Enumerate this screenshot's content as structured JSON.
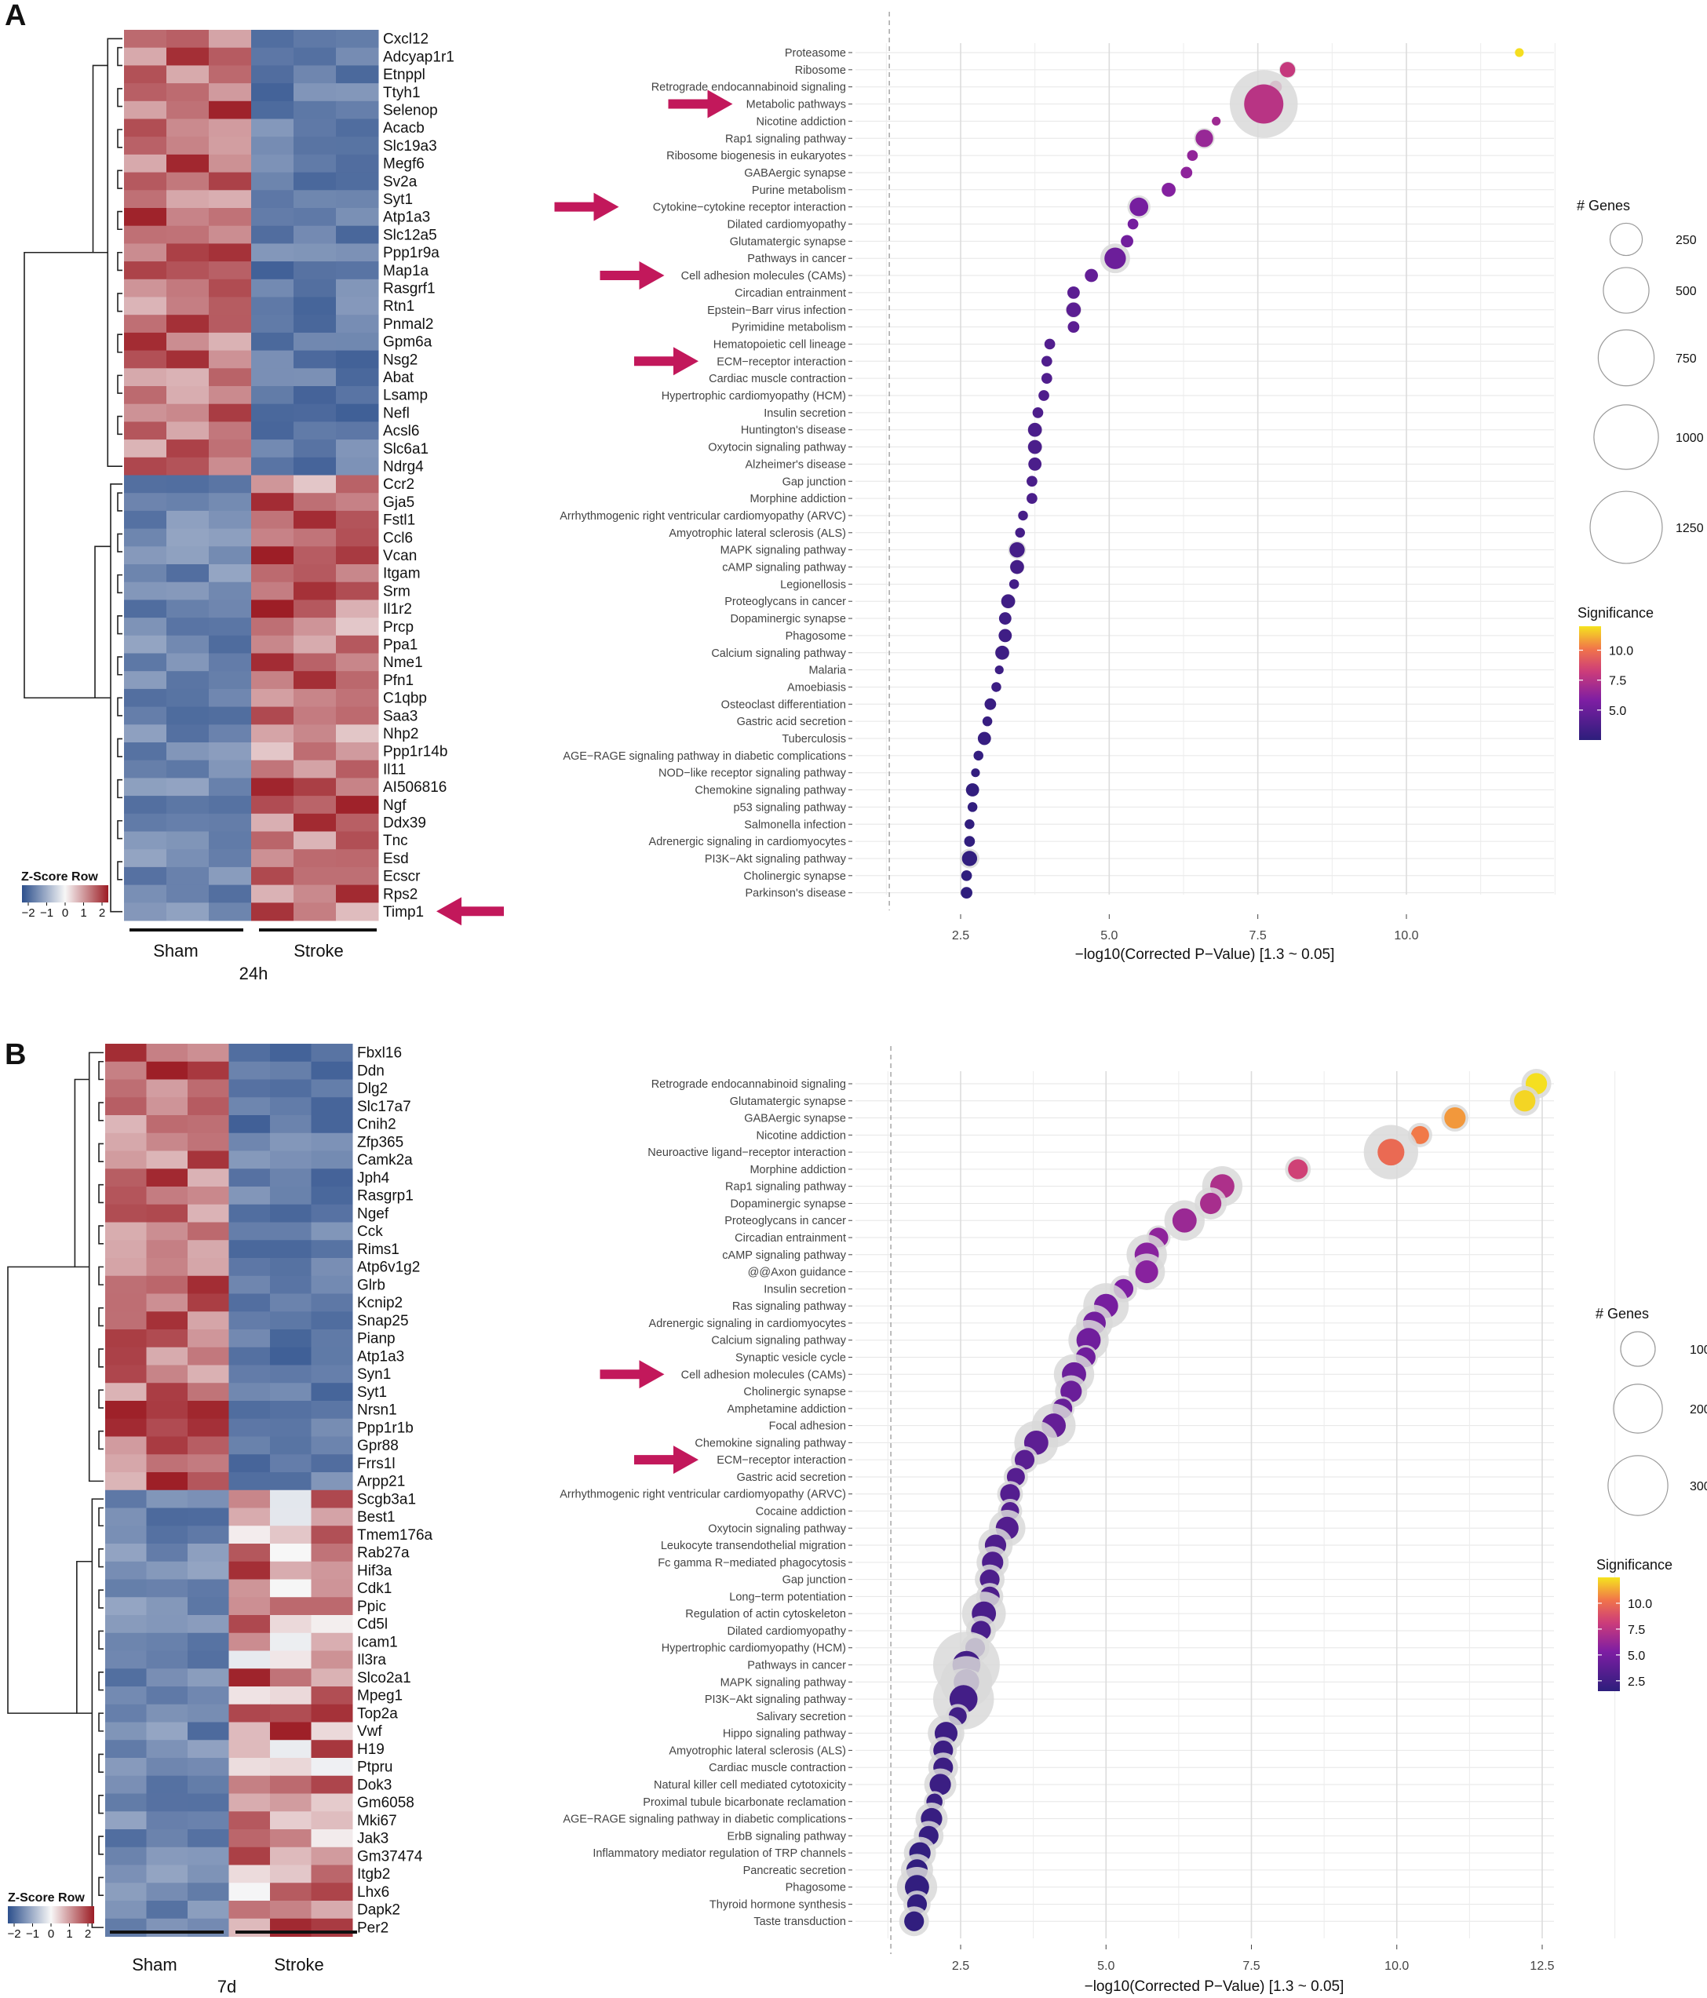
{
  "panels": [
    {
      "letter": "A",
      "timepoint": "24h",
      "group_labels": [
        "Sham",
        "Stroke"
      ],
      "zscore_title": "Z-Score Row",
      "zscore_ticks": [
        "−2",
        "−1",
        "0",
        "1",
        "2"
      ],
      "genes": [
        "Cxcl12",
        "Adcyap1r1",
        "Etnppl",
        "Ttyh1",
        "Selenop",
        "Acacb",
        "Slc19a3",
        "Megf6",
        "Sv2a",
        "Syt1",
        "Atp1a3",
        "Slc12a5",
        "Ppp1r9a",
        "Map1a",
        "Rasgrf1",
        "Rtn1",
        "Pnmal2",
        "Gpm6a",
        "Nsg2",
        "Abat",
        "Lsamp",
        "Nefl",
        "Acsl6",
        "Slc6a1",
        "Ndrg4",
        "Ccr2",
        "Gja5",
        "Fstl1",
        "Ccl6",
        "Vcan",
        "Itgam",
        "Srm",
        "Il1r2",
        "Prcp",
        "Ppa1",
        "Nme1",
        "Pfn1",
        "C1qbp",
        "Saa3",
        "Nhp2",
        "Ppp1r14b",
        "Il11",
        "AI506816",
        "Ngf",
        "Ddx39",
        "Tnc",
        "Esd",
        "Ecscr",
        "Rps2",
        "Timp1"
      ],
      "n_down": 25,
      "arrow_gene": "Timp1"
    },
    {
      "letter": "B",
      "timepoint": "7d",
      "group_labels": [
        "Sham",
        "Stroke"
      ],
      "zscore_title": "Z-Score Row",
      "zscore_ticks": [
        "−2",
        "−1",
        "0",
        "1",
        "2"
      ],
      "genes": [
        "Fbxl16",
        "Ddn",
        "Dlg2",
        "Slc17a7",
        "Cnih2",
        "Zfp365",
        "Camk2a",
        "Jph4",
        "Rasgrp1",
        "Ngef",
        "Cck",
        "Rims1",
        "Atp6v1g2",
        "Glrb",
        "Kcnip2",
        "Snap25",
        "Pianp",
        "Atp1a3",
        "Syn1",
        "Syt1",
        "Nrsn1",
        "Ppp1r1b",
        "Gpr88",
        "Frrs1l",
        "Arpp21",
        "Scgb3a1",
        "Best1",
        "Tmem176a",
        "Rab27a",
        "Hif3a",
        "Cdk1",
        "Ppic",
        "Cd5l",
        "Icam1",
        "Il3ra",
        "Slco2a1",
        "Mpeg1",
        "Top2a",
        "Vwf",
        "H19",
        "Ptpru",
        "Dok3",
        "Gm6058",
        "Mki67",
        "Jak3",
        "Gm37474",
        "Itgb2",
        "Lhx6",
        "Dapk2",
        "Per2"
      ],
      "n_down": 25,
      "arrow_gene": ""
    }
  ],
  "chart_data": [
    {
      "type": "scatter",
      "panel": "A",
      "xlabel": "−log10(Corrected P−Value) [1.3 ~ 0.05]",
      "x_ticks": [
        2.5,
        5.0,
        7.5,
        10.0
      ],
      "x_tick_labels": [
        "2.5",
        "5.0",
        "7.5",
        "10.0"
      ],
      "xlim": [
        0,
        12.5
      ],
      "threshold": 1.3,
      "size_legend_title": "# Genes",
      "size_legend": [
        250,
        500,
        750,
        1000,
        1250
      ],
      "color_legend_title": "Significance",
      "color_legend_ticks": [
        10.0,
        7.5,
        5.0
      ],
      "color_legend_tick_labels": [
        "10.0",
        "7.5",
        "5.0"
      ],
      "color_range": [
        2.5,
        12
      ],
      "arrows_at": [
        "Metabolic pathways",
        "Cytokine−cytokine receptor interaction",
        "Cell adhesion molecules (CAMs)",
        "ECM−receptor interaction"
      ],
      "pathways": [
        {
          "name": "Proteasome",
          "x": 11.9,
          "total": 0,
          "hits": 20
        },
        {
          "name": "Ribosome",
          "x": 8.0,
          "total": 80,
          "hits": 60
        },
        {
          "name": "Retrograde endocannabinoid signaling",
          "x": 7.8,
          "total": 0,
          "hits": 40
        },
        {
          "name": "Metabolic pathways",
          "x": 7.6,
          "total": 1300,
          "hits": 400
        },
        {
          "name": "Nicotine addiction",
          "x": 6.8,
          "total": 0,
          "hits": 20
        },
        {
          "name": "Rap1 signaling pathway",
          "x": 6.6,
          "total": 120,
          "hits": 80
        },
        {
          "name": "Ribosome biogenesis in eukaryotes",
          "x": 6.4,
          "total": 0,
          "hits": 30
        },
        {
          "name": "GABAergic synapse",
          "x": 6.3,
          "total": 0,
          "hits": 35
        },
        {
          "name": "Purine metabolism",
          "x": 6.0,
          "total": 60,
          "hits": 50
        },
        {
          "name": "Cytokine−cytokine receptor interaction",
          "x": 5.5,
          "total": 150,
          "hits": 90
        },
        {
          "name": "Dilated cardiomyopathy",
          "x": 5.4,
          "total": 0,
          "hits": 30
        },
        {
          "name": "Glutamatergic synapse",
          "x": 5.3,
          "total": 40,
          "hits": 40
        },
        {
          "name": "Pathways in cancer",
          "x": 5.1,
          "total": 250,
          "hits": 120
        },
        {
          "name": "Cell adhesion molecules (CAMs)",
          "x": 4.7,
          "total": 0,
          "hits": 45
        },
        {
          "name": "Circadian entrainment",
          "x": 4.4,
          "total": 0,
          "hits": 40
        },
        {
          "name": "Epstein−Barr virus infection",
          "x": 4.4,
          "total": 70,
          "hits": 55
        },
        {
          "name": "Pyrimidine metabolism",
          "x": 4.4,
          "total": 0,
          "hits": 35
        },
        {
          "name": "Hematopoietic cell lineage",
          "x": 4.0,
          "total": 0,
          "hits": 30
        },
        {
          "name": "ECM−receptor interaction",
          "x": 3.95,
          "total": 0,
          "hits": 30
        },
        {
          "name": "Cardiac muscle contraction",
          "x": 3.95,
          "total": 0,
          "hits": 30
        },
        {
          "name": "Hypertrophic cardiomyopathy (HCM)",
          "x": 3.9,
          "total": 0,
          "hits": 30
        },
        {
          "name": "Insulin secretion",
          "x": 3.8,
          "total": 0,
          "hits": 30
        },
        {
          "name": "Huntington's disease",
          "x": 3.75,
          "total": 60,
          "hits": 50
        },
        {
          "name": "Oxytocin signaling pathway",
          "x": 3.75,
          "total": 60,
          "hits": 50
        },
        {
          "name": "Alzheimer's disease",
          "x": 3.75,
          "total": 50,
          "hits": 45
        },
        {
          "name": "Gap junction",
          "x": 3.7,
          "total": 0,
          "hits": 30
        },
        {
          "name": "Morphine addiction",
          "x": 3.7,
          "total": 0,
          "hits": 30
        },
        {
          "name": "Arrhythmogenic right ventricular cardiomyopathy (ARVC)",
          "x": 3.55,
          "total": 0,
          "hits": 25
        },
        {
          "name": "Amyotrophic lateral sclerosis (ALS)",
          "x": 3.5,
          "total": 0,
          "hits": 25
        },
        {
          "name": "MAPK signaling pathway",
          "x": 3.45,
          "total": 90,
          "hits": 60
        },
        {
          "name": "cAMP signaling pathway",
          "x": 3.45,
          "total": 60,
          "hits": 50
        },
        {
          "name": "Legionellosis",
          "x": 3.4,
          "total": 0,
          "hits": 25
        },
        {
          "name": "Proteoglycans in cancer",
          "x": 3.3,
          "total": 60,
          "hits": 50
        },
        {
          "name": "Dopaminergic synapse",
          "x": 3.25,
          "total": 40,
          "hits": 40
        },
        {
          "name": "Phagosome",
          "x": 3.25,
          "total": 50,
          "hits": 45
        },
        {
          "name": "Calcium signaling pathway",
          "x": 3.2,
          "total": 60,
          "hits": 50
        },
        {
          "name": "Malaria",
          "x": 3.15,
          "total": 0,
          "hits": 20
        },
        {
          "name": "Amoebiasis",
          "x": 3.1,
          "total": 0,
          "hits": 25
        },
        {
          "name": "Osteoclast differentiation",
          "x": 3.0,
          "total": 0,
          "hits": 35
        },
        {
          "name": "Gastric acid secretion",
          "x": 2.95,
          "total": 0,
          "hits": 25
        },
        {
          "name": "Tuberculosis",
          "x": 2.9,
          "total": 50,
          "hits": 45
        },
        {
          "name": "AGE−RAGE signaling pathway in diabetic complications",
          "x": 2.8,
          "total": 0,
          "hits": 25
        },
        {
          "name": "NOD−like receptor signaling pathway",
          "x": 2.75,
          "total": 0,
          "hits": 20
        },
        {
          "name": "Chemokine signaling pathway",
          "x": 2.7,
          "total": 50,
          "hits": 45
        },
        {
          "name": "p53 signaling pathway",
          "x": 2.7,
          "total": 0,
          "hits": 25
        },
        {
          "name": "Salmonella infection",
          "x": 2.65,
          "total": 0,
          "hits": 25
        },
        {
          "name": "Adrenergic signaling in cardiomyocytes",
          "x": 2.65,
          "total": 0,
          "hits": 30
        },
        {
          "name": "PI3K−Akt signaling pathway",
          "x": 2.65,
          "total": 110,
          "hits": 60
        },
        {
          "name": "Cholinergic synapse",
          "x": 2.6,
          "total": 0,
          "hits": 30
        },
        {
          "name": "Parkinson's disease",
          "x": 2.6,
          "total": 0,
          "hits": 35
        }
      ]
    },
    {
      "type": "scatter",
      "panel": "B",
      "xlabel": "−log10(Corrected P−Value) [1.3 ~ 0.05]",
      "x_ticks": [
        2.5,
        5.0,
        7.5,
        10.0,
        12.5
      ],
      "x_tick_labels": [
        "2.5",
        "5.0",
        "7.5",
        "10.0",
        "12.5"
      ],
      "xlim": [
        0,
        13.8
      ],
      "threshold": 1.3,
      "size_legend_title": "# Genes",
      "size_legend": [
        100,
        200,
        300
      ],
      "color_legend_title": "Significance",
      "color_legend_ticks": [
        10.0,
        7.5,
        5.0,
        2.5
      ],
      "color_legend_tick_labels": [
        "10.0",
        "7.5",
        "5.0",
        "2.5"
      ],
      "color_range": [
        1.5,
        12.5
      ],
      "arrows_at": [
        "Cell adhesion molecules (CAMs)",
        "ECM−receptor interaction"
      ],
      "pathways": [
        {
          "name": "Retrograde endocannabinoid signaling",
          "x": 12.4,
          "total": 60,
          "hits": 35
        },
        {
          "name": "Glutamatergic synapse",
          "x": 12.2,
          "total": 60,
          "hits": 35
        },
        {
          "name": "GABAergic synapse",
          "x": 11.0,
          "total": 50,
          "hits": 35
        },
        {
          "name": "Nicotine addiction",
          "x": 10.4,
          "total": 40,
          "hits": 25
        },
        {
          "name": "Neuroactive ligand−receptor interaction",
          "x": 9.9,
          "total": 200,
          "hits": 55
        },
        {
          "name": "Morphine addiction",
          "x": 8.3,
          "total": 45,
          "hits": 30
        },
        {
          "name": "Rap1 signaling pathway",
          "x": 7.0,
          "total": 110,
          "hits": 45
        },
        {
          "name": "Dopaminergic synapse",
          "x": 6.8,
          "total": 70,
          "hits": 35
        },
        {
          "name": "Proteoglycans in cancer",
          "x": 6.35,
          "total": 110,
          "hits": 45
        },
        {
          "name": "Circadian entrainment",
          "x": 5.9,
          "total": 40,
          "hits": 30
        },
        {
          "name": "cAMP signaling pathway",
          "x": 5.7,
          "total": 110,
          "hits": 45
        },
        {
          "name": "@@Axon guidance",
          "x": 5.7,
          "total": 90,
          "hits": 40
        },
        {
          "name": "Insulin secretion",
          "x": 5.3,
          "total": 50,
          "hits": 30
        },
        {
          "name": "Ras signaling pathway",
          "x": 5.0,
          "total": 140,
          "hits": 45
        },
        {
          "name": "Adrenergic signaling in cardiomyocytes",
          "x": 4.8,
          "total": 90,
          "hits": 40
        },
        {
          "name": "Calcium signaling pathway",
          "x": 4.7,
          "total": 110,
          "hits": 45
        },
        {
          "name": "Synaptic vesicle cycle",
          "x": 4.65,
          "total": 40,
          "hits": 30
        },
        {
          "name": "Cell adhesion molecules (CAMs)",
          "x": 4.45,
          "total": 110,
          "hits": 45
        },
        {
          "name": "Cholinergic synapse",
          "x": 4.4,
          "total": 70,
          "hits": 35
        },
        {
          "name": "Amphetamine addiction",
          "x": 4.25,
          "total": 40,
          "hits": 30
        },
        {
          "name": "Focal adhesion",
          "x": 4.1,
          "total": 130,
          "hits": 45
        },
        {
          "name": "Chemokine signaling pathway",
          "x": 3.8,
          "total": 130,
          "hits": 45
        },
        {
          "name": "ECM−receptor interaction",
          "x": 3.6,
          "total": 50,
          "hits": 30
        },
        {
          "name": "Gastric acid secretion",
          "x": 3.45,
          "total": 40,
          "hits": 25
        },
        {
          "name": "Arrhythmogenic right ventricular cardiomyopathy (ARVC)",
          "x": 3.35,
          "total": 45,
          "hits": 30
        },
        {
          "name": "Cocaine addiction",
          "x": 3.35,
          "total": 40,
          "hits": 25
        },
        {
          "name": "Oxytocin signaling pathway",
          "x": 3.3,
          "total": 90,
          "hits": 40
        },
        {
          "name": "Leukocyte transendothelial migration",
          "x": 3.1,
          "total": 80,
          "hits": 35
        },
        {
          "name": "Fc gamma R−mediated phagocytosis",
          "x": 3.05,
          "total": 70,
          "hits": 35
        },
        {
          "name": "Gap junction",
          "x": 3.0,
          "total": 60,
          "hits": 30
        },
        {
          "name": "Long−term potentiation",
          "x": 3.0,
          "total": 50,
          "hits": 30
        },
        {
          "name": "Regulation of actin cytoskeleton",
          "x": 2.9,
          "total": 130,
          "hits": 45
        },
        {
          "name": "Dilated cardiomyopathy",
          "x": 2.85,
          "total": 60,
          "hits": 30
        },
        {
          "name": "Hypertrophic cardiomyopathy (HCM)",
          "x": 2.75,
          "total": 55,
          "hits": 30
        },
        {
          "name": "Pathways in cancer",
          "x": 2.6,
          "total": 300,
          "hits": 60
        },
        {
          "name": "MAPK signaling pathway",
          "x": 2.6,
          "total": 180,
          "hits": 50
        },
        {
          "name": "PI3K−Akt signaling pathway",
          "x": 2.55,
          "total": 250,
          "hits": 60
        },
        {
          "name": "Salivary secretion",
          "x": 2.45,
          "total": 40,
          "hits": 25
        },
        {
          "name": "Hippo signaling pathway",
          "x": 2.25,
          "total": 90,
          "hits": 40
        },
        {
          "name": "Amyotrophic lateral sclerosis (ALS)",
          "x": 2.2,
          "total": 50,
          "hits": 30
        },
        {
          "name": "Cardiac muscle contraction",
          "x": 2.2,
          "total": 60,
          "hits": 30
        },
        {
          "name": "Natural killer cell mediated cytotoxicity",
          "x": 2.15,
          "total": 70,
          "hits": 35
        },
        {
          "name": "Proximal tubule bicarbonate reclamation",
          "x": 2.05,
          "total": 30,
          "hits": 20
        },
        {
          "name": "AGE−RAGE signaling pathway in diabetic complications",
          "x": 2.0,
          "total": 70,
          "hits": 35
        },
        {
          "name": "ErbB signaling pathway",
          "x": 1.95,
          "total": 60,
          "hits": 30
        },
        {
          "name": "Inflammatory mediator regulation of TRP channels",
          "x": 1.8,
          "total": 70,
          "hits": 35
        },
        {
          "name": "Pancreatic secretion",
          "x": 1.75,
          "total": 70,
          "hits": 35
        },
        {
          "name": "Phagosome",
          "x": 1.75,
          "total": 110,
          "hits": 45
        },
        {
          "name": "Thyroid hormone synthesis",
          "x": 1.75,
          "total": 50,
          "hits": 30
        },
        {
          "name": "Taste transduction",
          "x": 1.7,
          "total": 60,
          "hits": 30
        }
      ]
    }
  ]
}
